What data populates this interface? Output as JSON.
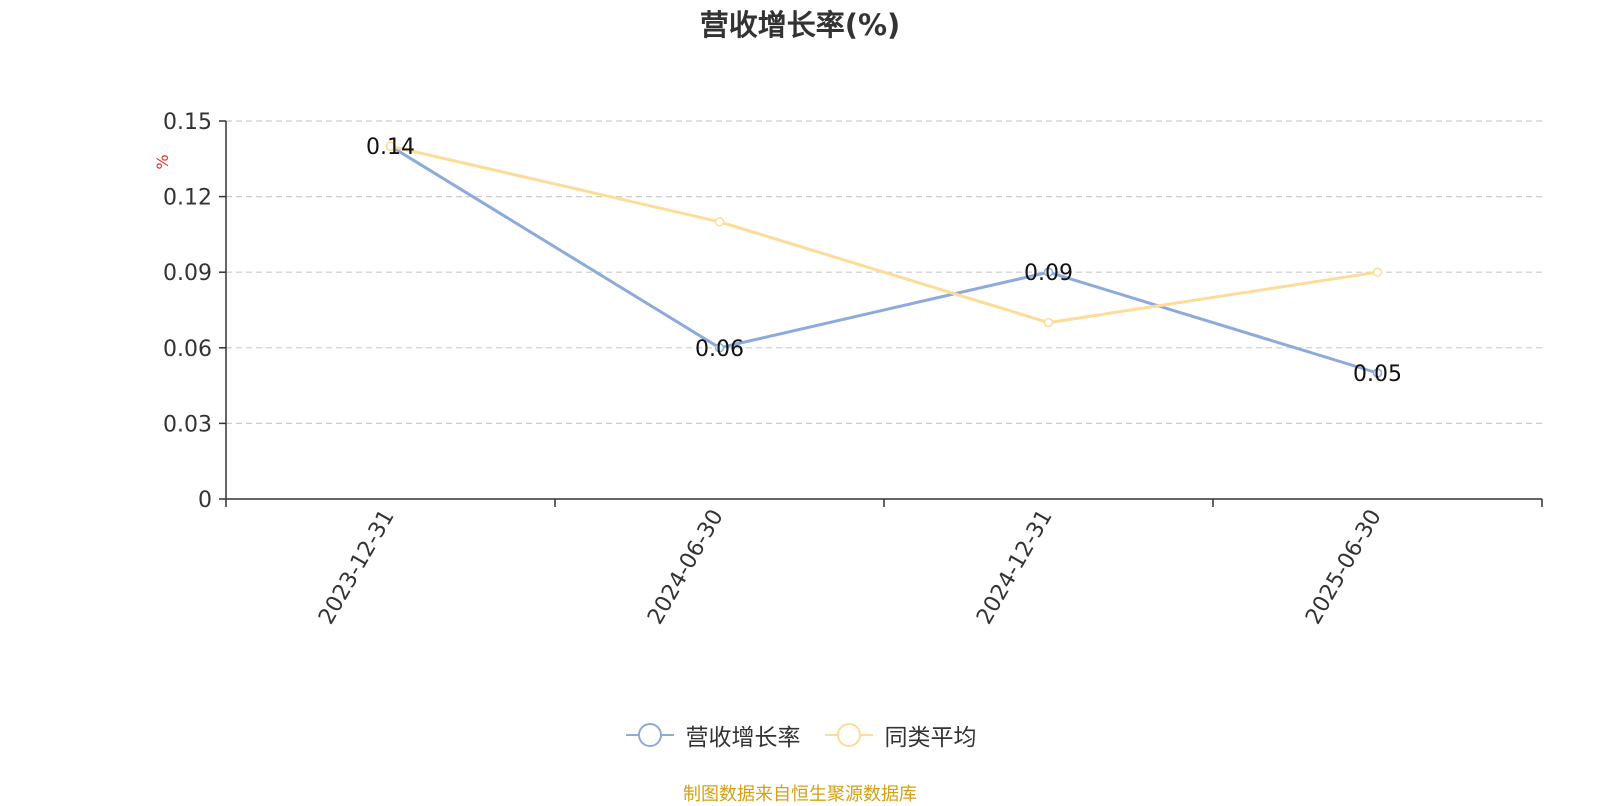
{
  "title": "营收增长率(%)",
  "source": "制图数据来自恒生聚源数据库",
  "chart_data": {
    "type": "line",
    "title": "营收增长率(%)",
    "ylabel": "%",
    "xlabel": "",
    "categories": [
      "2023-12-31",
      "2024-06-30",
      "2024-12-31",
      "2025-06-30"
    ],
    "ylim": [
      0,
      0.15
    ],
    "yticks": [
      "0",
      "0.03",
      "0.06",
      "0.09",
      "0.12",
      "0.15"
    ],
    "grid": true,
    "legend_position": "bottom",
    "series": [
      {
        "name": "营收增长率",
        "values": [
          0.14,
          0.06,
          0.09,
          0.05
        ],
        "color": "#8eaadb",
        "labels": [
          "0.14",
          "0.06",
          "0.09",
          "0.05"
        ]
      },
      {
        "name": "同类平均",
        "values": [
          0.14,
          0.11,
          0.07,
          0.09
        ],
        "color": "#fddc99"
      }
    ]
  }
}
